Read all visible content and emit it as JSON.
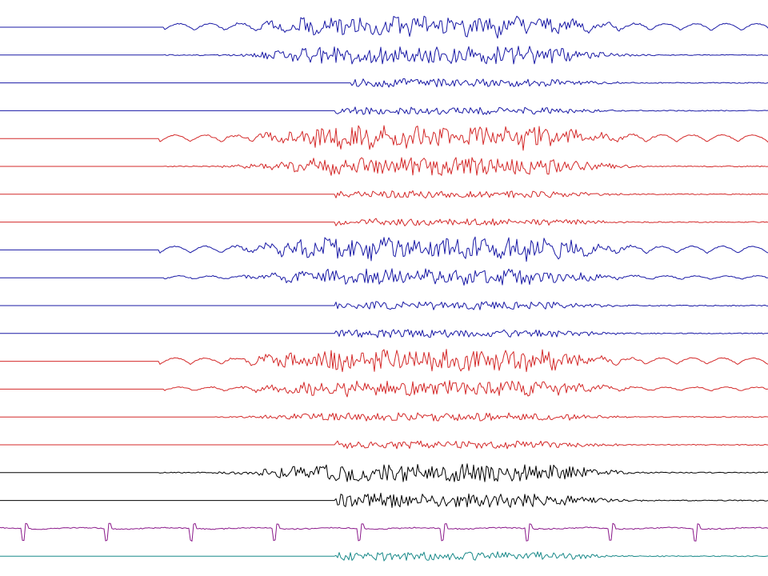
{
  "chart_data": {
    "type": "line",
    "title": "",
    "xlabel": "",
    "ylabel": "",
    "grid": false,
    "legend": "none",
    "x_range": [
      0,
      1000
    ],
    "series": [
      {
        "color": "#1a1aa6",
        "onset": 205,
        "pattern": "rhythmic",
        "amp": 1.0,
        "burst": 0.9
      },
      {
        "color": "#1a1aa6",
        "onset": 205,
        "pattern": "burst",
        "amp": 0.35,
        "burst": 1.0
      },
      {
        "color": "#1a1aa6",
        "onset": 440,
        "pattern": "burst",
        "amp": 0.15,
        "burst": 0.45
      },
      {
        "color": "#1a1aa6",
        "onset": 420,
        "pattern": "burst",
        "amp": 0.15,
        "burst": 0.4
      },
      {
        "color": "#d42a2a",
        "onset": 200,
        "pattern": "rhythmic",
        "amp": 1.0,
        "burst": 1.1
      },
      {
        "color": "#d42a2a",
        "onset": 205,
        "pattern": "burst",
        "amp": 0.3,
        "burst": 1.0
      },
      {
        "color": "#d42a2a",
        "onset": 420,
        "pattern": "burst",
        "amp": 0.15,
        "burst": 0.4
      },
      {
        "color": "#d42a2a",
        "onset": 420,
        "pattern": "burst",
        "amp": 0.15,
        "burst": 0.4
      },
      {
        "color": "#1a1aa6",
        "onset": 200,
        "pattern": "rhythmic",
        "amp": 1.0,
        "burst": 1.1
      },
      {
        "color": "#1a1aa6",
        "onset": 205,
        "pattern": "rhythmic",
        "amp": 0.5,
        "burst": 0.8
      },
      {
        "color": "#1a1aa6",
        "onset": 420,
        "pattern": "burst",
        "amp": 0.2,
        "burst": 0.45
      },
      {
        "color": "#1a1aa6",
        "onset": 420,
        "pattern": "burst",
        "amp": 0.25,
        "burst": 0.45
      },
      {
        "color": "#d42a2a",
        "onset": 200,
        "pattern": "rhythmic",
        "amp": 0.9,
        "burst": 1.1
      },
      {
        "color": "#d42a2a",
        "onset": 205,
        "pattern": "rhythmic",
        "amp": 0.55,
        "burst": 0.8
      },
      {
        "color": "#d42a2a",
        "onset": 270,
        "pattern": "burst",
        "amp": 0.35,
        "burst": 0.45
      },
      {
        "color": "#d42a2a",
        "onset": 420,
        "pattern": "burst",
        "amp": 0.2,
        "burst": 0.4
      },
      {
        "color": "#000000",
        "onset": 200,
        "pattern": "burst",
        "amp": 0.25,
        "burst": 1.0
      },
      {
        "color": "#000000",
        "onset": 420,
        "pattern": "burst",
        "amp": 0.2,
        "burst": 0.8
      },
      {
        "color": "#8b1a8b",
        "onset": 0,
        "pattern": "ecg",
        "amp": 1.0,
        "burst": 0.3
      },
      {
        "color": "#1a8a8a",
        "onset": 420,
        "pattern": "burst",
        "amp": 0.15,
        "burst": 0.5
      }
    ]
  }
}
